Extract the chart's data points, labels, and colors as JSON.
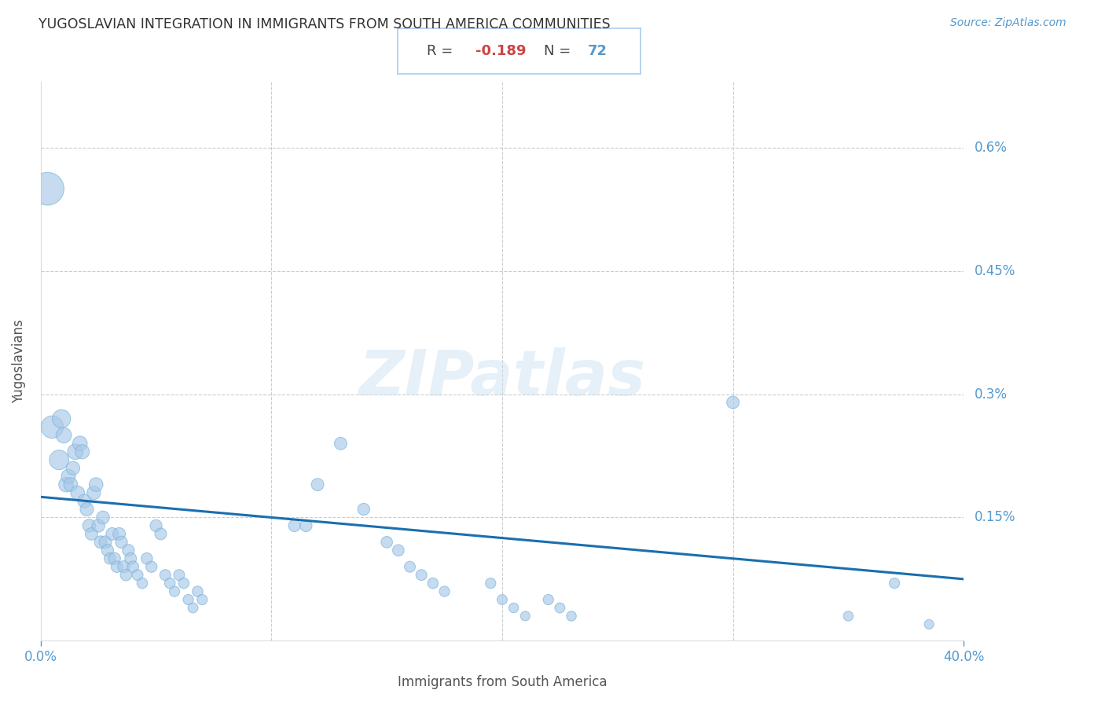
{
  "title": "YUGOSLAVIAN INTEGRATION IN IMMIGRANTS FROM SOUTH AMERICA COMMUNITIES",
  "source": "Source: ZipAtlas.com",
  "xlabel": "Immigrants from South America",
  "ylabel": "Yugoslavians",
  "R": -0.189,
  "N": 72,
  "xlim": [
    0.0,
    0.4
  ],
  "ylim": [
    0.0,
    0.0068
  ],
  "xticks": [
    0.0,
    0.4
  ],
  "xtick_labels": [
    "0.0%",
    "40.0%"
  ],
  "ytick_labels": [
    "0.15%",
    "0.3%",
    "0.45%",
    "0.6%"
  ],
  "ytick_vals": [
    0.0015,
    0.003,
    0.0045,
    0.006
  ],
  "scatter_color": "#a8c8e8",
  "scatter_edge_color": "#7ab5d8",
  "line_color": "#1a6faf",
  "background_color": "#ffffff",
  "title_color": "#333333",
  "axis_label_color": "#555555",
  "tick_color": "#5599cc",
  "annotation_border_color": "#aaccee",
  "watermark": "ZIPatlas",
  "points": [
    [
      0.003,
      0.0055
    ],
    [
      0.005,
      0.0026
    ],
    [
      0.008,
      0.0022
    ],
    [
      0.009,
      0.0027
    ],
    [
      0.01,
      0.0025
    ],
    [
      0.011,
      0.0019
    ],
    [
      0.012,
      0.002
    ],
    [
      0.013,
      0.0019
    ],
    [
      0.014,
      0.0021
    ],
    [
      0.015,
      0.0023
    ],
    [
      0.016,
      0.0018
    ],
    [
      0.017,
      0.0024
    ],
    [
      0.018,
      0.0023
    ],
    [
      0.019,
      0.0017
    ],
    [
      0.02,
      0.0016
    ],
    [
      0.021,
      0.0014
    ],
    [
      0.022,
      0.0013
    ],
    [
      0.023,
      0.0018
    ],
    [
      0.024,
      0.0019
    ],
    [
      0.025,
      0.0014
    ],
    [
      0.026,
      0.0012
    ],
    [
      0.027,
      0.0015
    ],
    [
      0.028,
      0.0012
    ],
    [
      0.029,
      0.0011
    ],
    [
      0.03,
      0.001
    ],
    [
      0.031,
      0.0013
    ],
    [
      0.032,
      0.001
    ],
    [
      0.033,
      0.0009
    ],
    [
      0.034,
      0.0013
    ],
    [
      0.035,
      0.0012
    ],
    [
      0.036,
      0.0009
    ],
    [
      0.037,
      0.0008
    ],
    [
      0.038,
      0.0011
    ],
    [
      0.039,
      0.001
    ],
    [
      0.04,
      0.0009
    ],
    [
      0.042,
      0.0008
    ],
    [
      0.044,
      0.0007
    ],
    [
      0.046,
      0.001
    ],
    [
      0.048,
      0.0009
    ],
    [
      0.05,
      0.0014
    ],
    [
      0.052,
      0.0013
    ],
    [
      0.054,
      0.0008
    ],
    [
      0.056,
      0.0007
    ],
    [
      0.058,
      0.0006
    ],
    [
      0.06,
      0.0008
    ],
    [
      0.062,
      0.0007
    ],
    [
      0.064,
      0.0005
    ],
    [
      0.066,
      0.0004
    ],
    [
      0.068,
      0.0006
    ],
    [
      0.07,
      0.0005
    ],
    [
      0.11,
      0.0014
    ],
    [
      0.115,
      0.0014
    ],
    [
      0.12,
      0.0019
    ],
    [
      0.13,
      0.0024
    ],
    [
      0.14,
      0.0016
    ],
    [
      0.15,
      0.0012
    ],
    [
      0.155,
      0.0011
    ],
    [
      0.16,
      0.0009
    ],
    [
      0.165,
      0.0008
    ],
    [
      0.17,
      0.0007
    ],
    [
      0.175,
      0.0006
    ],
    [
      0.195,
      0.0007
    ],
    [
      0.2,
      0.0005
    ],
    [
      0.205,
      0.0004
    ],
    [
      0.21,
      0.0003
    ],
    [
      0.22,
      0.0005
    ],
    [
      0.225,
      0.0004
    ],
    [
      0.23,
      0.0003
    ],
    [
      0.3,
      0.0029
    ],
    [
      0.35,
      0.0003
    ],
    [
      0.37,
      0.0007
    ],
    [
      0.385,
      0.0002
    ]
  ],
  "bubble_sizes": [
    900,
    420,
    320,
    280,
    200,
    180,
    170,
    160,
    155,
    200,
    160,
    180,
    170,
    155,
    150,
    140,
    130,
    155,
    160,
    140,
    130,
    140,
    130,
    120,
    110,
    130,
    120,
    110,
    130,
    120,
    120,
    110,
    120,
    115,
    110,
    100,
    95,
    110,
    105,
    120,
    115,
    100,
    95,
    90,
    100,
    95,
    90,
    85,
    95,
    90,
    120,
    120,
    130,
    130,
    120,
    110,
    110,
    100,
    100,
    95,
    90,
    90,
    85,
    80,
    75,
    90,
    85,
    80,
    130,
    80,
    90,
    75
  ]
}
